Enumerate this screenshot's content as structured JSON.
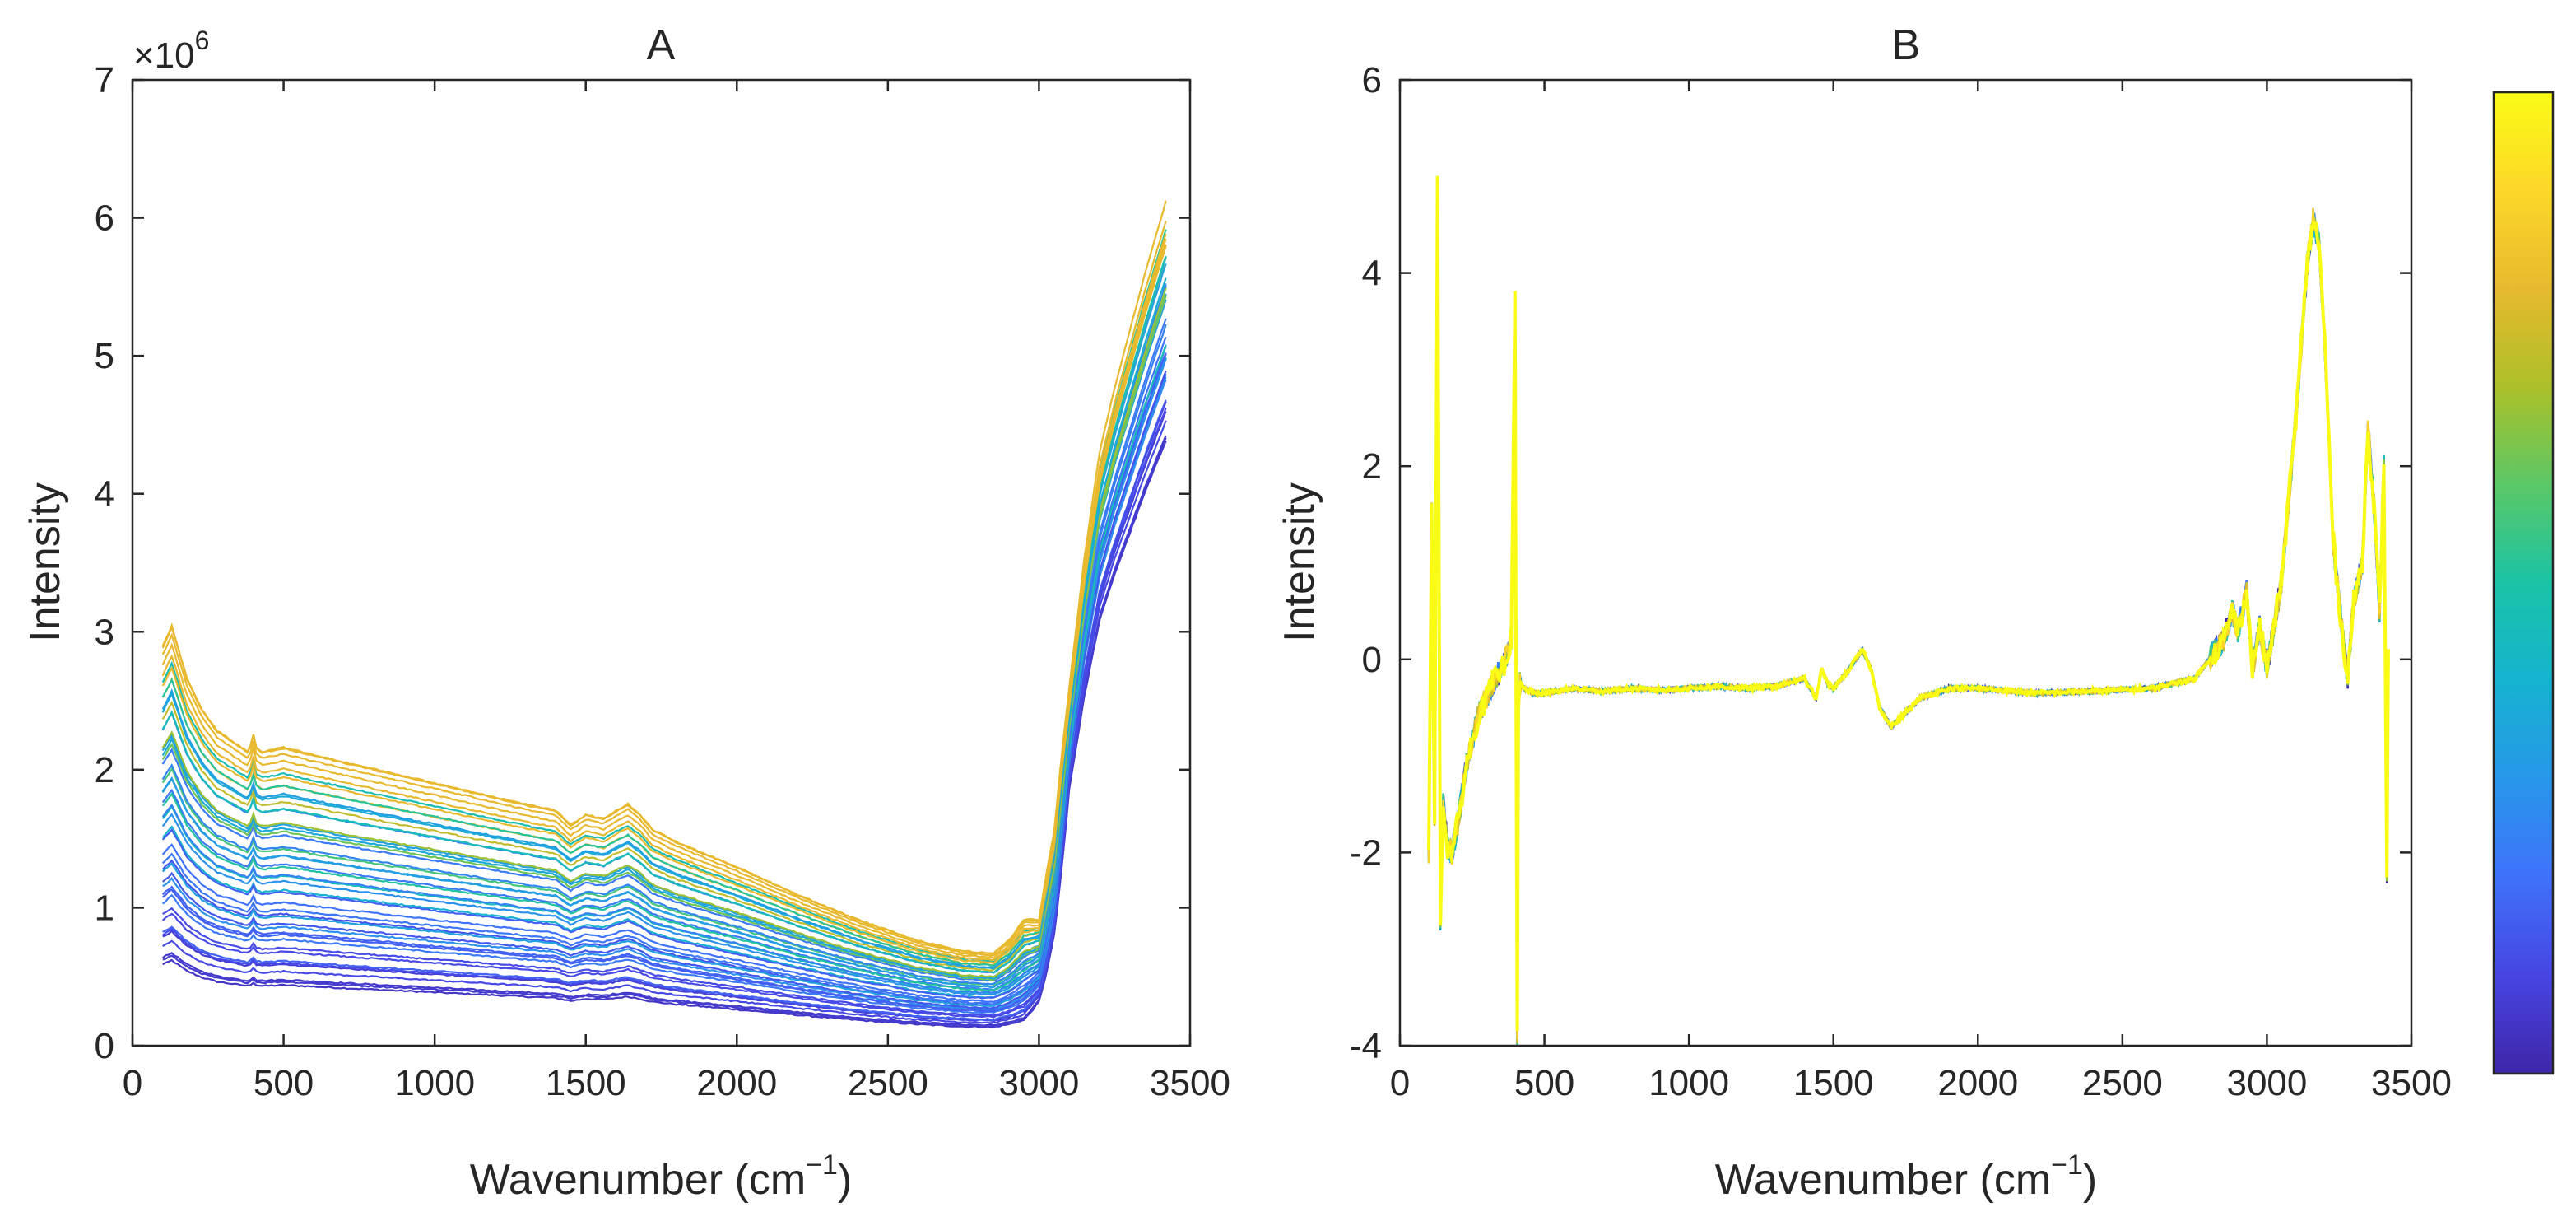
{
  "chart_data": [
    {
      "type": "line",
      "panel": "A",
      "title": "A",
      "xlabel_main": "Wavenumber (cm",
      "xlabel_sup": "−1",
      "xlabel_close": ")",
      "ylabel": "Intensity",
      "y_multiplier_base": "×10",
      "y_multiplier_exp": "6",
      "xlim": [
        0,
        3500
      ],
      "ylim": [
        0,
        7
      ],
      "xticks": [
        0,
        500,
        1000,
        1500,
        2000,
        2500,
        3000,
        3500
      ],
      "yticks": [
        0,
        1,
        2,
        3,
        4,
        5,
        6,
        7
      ],
      "grid": false,
      "series_description": "many overlaid Raman spectra (×10^6), colored by parula colormap",
      "profile_x": [
        100,
        130,
        180,
        230,
        280,
        330,
        380,
        398,
        404,
        410,
        430,
        500,
        700,
        1000,
        1300,
        1400,
        1450,
        1500,
        1560,
        1600,
        1640,
        1680,
        1720,
        1800,
        2000,
        2200,
        2400,
        2600,
        2750,
        2850,
        2900,
        2950,
        3000,
        3050,
        3100,
        3150,
        3200,
        3250,
        3300,
        3350,
        3420
      ],
      "profile_y": [
        1.9,
        2.0,
        1.75,
        1.6,
        1.5,
        1.45,
        1.4,
        1.45,
        1.55,
        1.42,
        1.4,
        1.42,
        1.35,
        1.25,
        1.15,
        1.12,
        1.05,
        1.1,
        1.08,
        1.12,
        1.15,
        1.1,
        1.03,
        0.97,
        0.85,
        0.72,
        0.6,
        0.5,
        0.45,
        0.44,
        0.5,
        0.6,
        0.65,
        1.2,
        2.2,
        3.0,
        3.65,
        4.05,
        4.4,
        4.75,
        5.2
      ],
      "series_count": 48
    },
    {
      "type": "line",
      "panel": "B",
      "title": "B",
      "xlabel_main": "Wavenumber (cm",
      "xlabel_sup": "−1",
      "xlabel_close": ")",
      "ylabel": "Intensity",
      "xlim": [
        0,
        3500
      ],
      "ylim": [
        -4,
        6
      ],
      "xticks": [
        0,
        500,
        1000,
        1500,
        2000,
        2500,
        3000,
        3500
      ],
      "yticks": [
        -4,
        -2,
        0,
        2,
        4,
        6
      ],
      "grid": false,
      "series_description": "preprocessed (standardized) spectra, all overlapping",
      "profile_x": [
        100,
        110,
        120,
        130,
        140,
        150,
        165,
        180,
        200,
        230,
        270,
        320,
        360,
        385,
        398,
        402,
        406,
        410,
        415,
        430,
        460,
        500,
        600,
        700,
        800,
        900,
        1000,
        1100,
        1200,
        1300,
        1400,
        1440,
        1460,
        1480,
        1500,
        1550,
        1600,
        1630,
        1660,
        1700,
        1750,
        1800,
        1900,
        2000,
        2200,
        2400,
        2600,
        2750,
        2850,
        2880,
        2900,
        2930,
        2950,
        2975,
        3000,
        3050,
        3100,
        3140,
        3160,
        3180,
        3200,
        3230,
        3260,
        3280,
        3300,
        3330,
        3350,
        3370,
        3390,
        3405,
        3415,
        3420
      ],
      "profile_y": [
        -2.0,
        1.5,
        -1.6,
        4.9,
        -2.7,
        -1.5,
        -1.95,
        -2.0,
        -1.7,
        -1.1,
        -0.6,
        -0.25,
        -0.05,
        0.2,
        3.7,
        -0.4,
        -3.9,
        -0.5,
        -0.25,
        -0.3,
        -0.35,
        -0.35,
        -0.3,
        -0.33,
        -0.3,
        -0.32,
        -0.3,
        -0.28,
        -0.3,
        -0.28,
        -0.2,
        -0.4,
        -0.1,
        -0.25,
        -0.3,
        -0.12,
        0.1,
        -0.1,
        -0.5,
        -0.7,
        -0.55,
        -0.4,
        -0.3,
        -0.3,
        -0.35,
        -0.33,
        -0.3,
        -0.2,
        0.2,
        0.5,
        0.3,
        0.7,
        -0.1,
        0.35,
        -0.1,
        0.8,
        2.5,
        4.1,
        4.55,
        4.3,
        3.3,
        1.2,
        0.3,
        -0.2,
        0.6,
        1.0,
        2.4,
        1.6,
        0.5,
        2.0,
        -2.2,
        0.0
      ],
      "series_count": 10
    }
  ],
  "colorbar": {
    "colormap": "parula",
    "stops": [
      "#3e26a8",
      "#4745e3",
      "#3f72fb",
      "#2797ea",
      "#16b3d0",
      "#1ac3a6",
      "#5bc866",
      "#acc029",
      "#e8b92e",
      "#fdd729",
      "#f9fb14"
    ]
  }
}
